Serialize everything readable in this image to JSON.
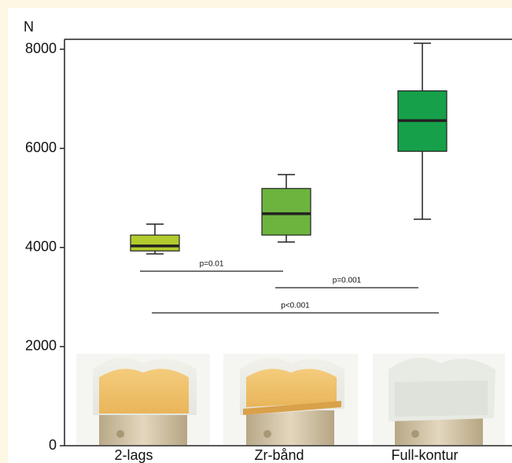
{
  "chart_data": {
    "type": "box",
    "y_label": "N",
    "categories": [
      "2-lags",
      "Zr-bånd",
      "Full-kontur"
    ],
    "colors": [
      "#b3cb2d",
      "#6cb43e",
      "#17a04a"
    ],
    "boxes": [
      {
        "whisker_low": 3870,
        "q1": 3930,
        "median": 4030,
        "q3": 4250,
        "whisker_high": 4470
      },
      {
        "whisker_low": 4110,
        "q1": 4250,
        "median": 4680,
        "q3": 5190,
        "whisker_high": 5470
      },
      {
        "whisker_low": 4570,
        "q1": 5940,
        "median": 6560,
        "q3": 7160,
        "whisker_high": 8120
      }
    ],
    "ylim": [
      0,
      8200
    ],
    "yticks": [
      0,
      2000,
      4000,
      6000,
      8000
    ],
    "annotations": [
      "p=0.01",
      "p=0.001",
      "p<0.001"
    ]
  }
}
